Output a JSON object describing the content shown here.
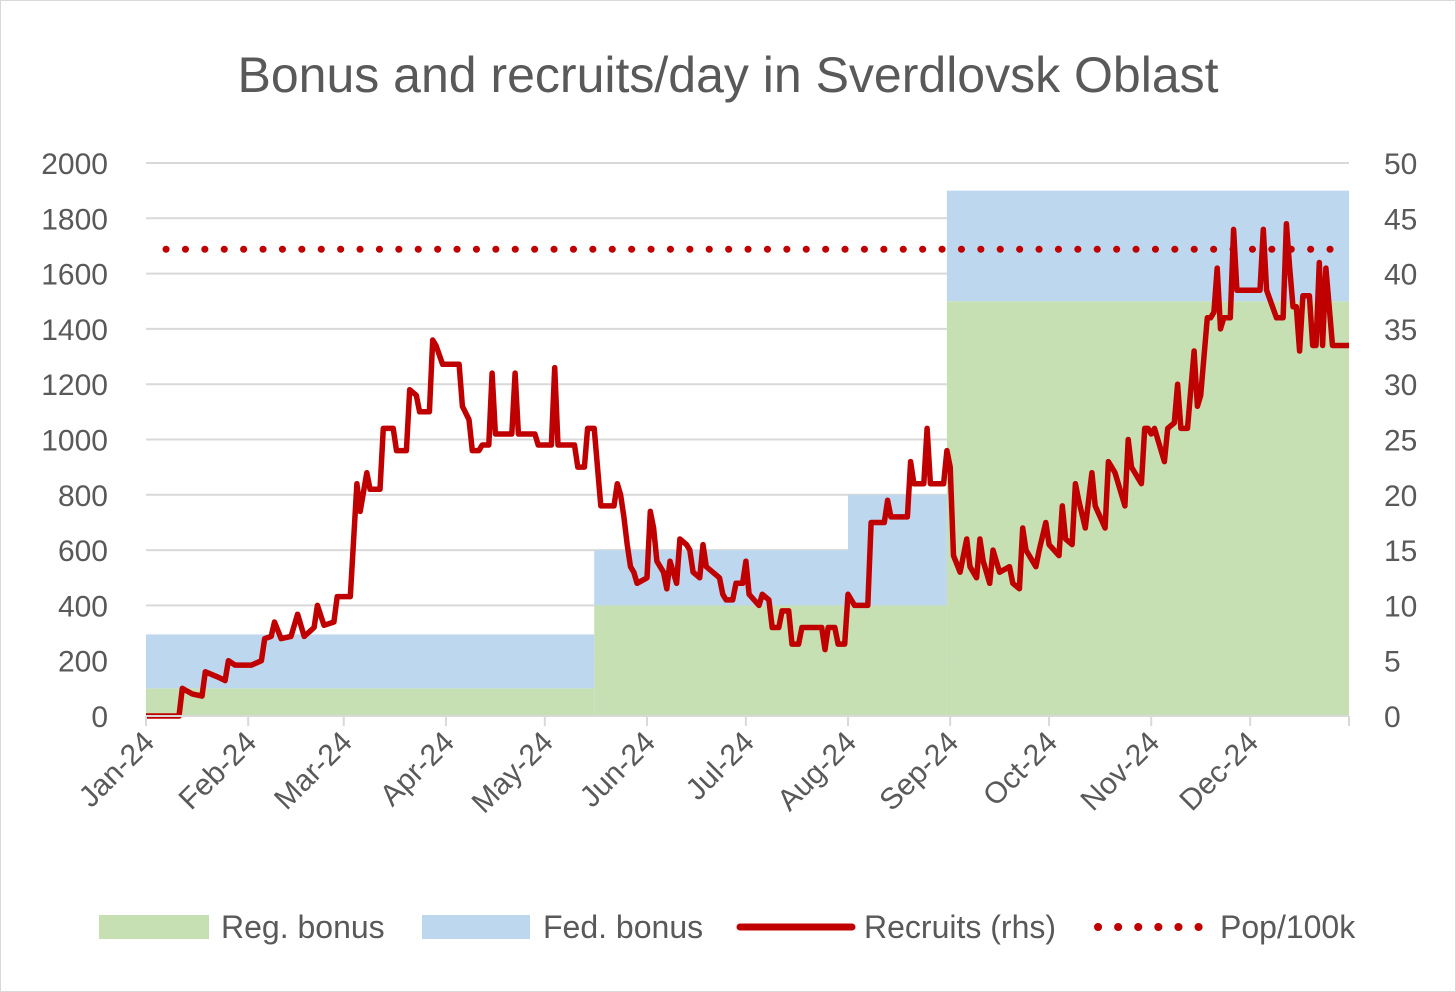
{
  "chart_data": {
    "type": "area",
    "title": "Bonus and recruits/day in Sverdlovsk Oblast",
    "x_ticks": [
      "Jan-24",
      "Feb-24",
      "Mar-24",
      "Apr-24",
      "May-24",
      "Jun-24",
      "Jul-24",
      "Aug-24",
      "Sep-24",
      "Oct-24",
      "Nov-24",
      "Dec-24"
    ],
    "y_left": {
      "min": 0,
      "max": 2000,
      "step": 200,
      "ticks": [
        "0",
        "200",
        "400",
        "600",
        "800",
        "1000",
        "1200",
        "1400",
        "1600",
        "1800",
        "2000"
      ]
    },
    "y_right": {
      "min": 0,
      "max": 50,
      "step": 5,
      "ticks": [
        "0",
        "5",
        "10",
        "15",
        "20",
        "25",
        "30",
        "35",
        "40",
        "45",
        "50"
      ]
    },
    "grid": true,
    "legend_position": "bottom",
    "colors": {
      "reg_bonus": "#c6e0b4",
      "fed_bonus": "#bdd7ee",
      "recruits": "#c00000",
      "pop": "#c00000",
      "grid": "#d9d9d9",
      "text": "#595959"
    },
    "series": [
      {
        "name": "Reg. bonus",
        "kind": "stacked-area",
        "axis": "left",
        "steps": [
          {
            "from": "2024-01-01",
            "to": "2024-05-16",
            "value": 100
          },
          {
            "from": "2024-05-16",
            "to": "2024-08-31",
            "value": 400
          },
          {
            "from": "2024-08-31",
            "to": "2024-12-31",
            "value": 1500
          }
        ]
      },
      {
        "name": "Fed. bonus",
        "kind": "stacked-area",
        "axis": "left",
        "steps": [
          {
            "from": "2024-01-01",
            "to": "2024-05-16",
            "value": 195
          },
          {
            "from": "2024-05-16",
            "to": "2024-08-01",
            "value": 200
          },
          {
            "from": "2024-08-01",
            "to": "2024-08-31",
            "value": 400
          },
          {
            "from": "2024-08-31",
            "to": "2024-12-31",
            "value": 400
          }
        ]
      },
      {
        "name": "Recruits (rhs)",
        "kind": "line",
        "axis": "right",
        "points": [
          [
            "2024-01-01",
            0
          ],
          [
            "2024-01-11",
            0
          ],
          [
            "2024-01-12",
            2.5
          ],
          [
            "2024-01-15",
            2
          ],
          [
            "2024-01-18",
            1.8
          ],
          [
            "2024-01-19",
            4
          ],
          [
            "2024-01-23",
            3.5
          ],
          [
            "2024-01-25",
            3.2
          ],
          [
            "2024-01-26",
            5
          ],
          [
            "2024-01-28",
            4.6
          ],
          [
            "2024-02-02",
            4.6
          ],
          [
            "2024-02-05",
            5
          ],
          [
            "2024-02-06",
            7
          ],
          [
            "2024-02-08",
            7.2
          ],
          [
            "2024-02-09",
            8.5
          ],
          [
            "2024-02-11",
            7
          ],
          [
            "2024-02-14",
            7.2
          ],
          [
            "2024-02-16",
            9.2
          ],
          [
            "2024-02-18",
            7.2
          ],
          [
            "2024-02-21",
            8
          ],
          [
            "2024-02-22",
            10
          ],
          [
            "2024-02-24",
            8.2
          ],
          [
            "2024-02-27",
            8.5
          ],
          [
            "2024-02-28",
            10.8
          ],
          [
            "2024-03-03",
            10.8
          ],
          [
            "2024-03-05",
            21
          ],
          [
            "2024-03-06",
            18.5
          ],
          [
            "2024-03-08",
            22
          ],
          [
            "2024-03-09",
            20.5
          ],
          [
            "2024-03-12",
            20.5
          ],
          [
            "2024-03-13",
            26
          ],
          [
            "2024-03-16",
            26
          ],
          [
            "2024-03-17",
            24
          ],
          [
            "2024-03-20",
            24
          ],
          [
            "2024-03-21",
            29.5
          ],
          [
            "2024-03-23",
            29
          ],
          [
            "2024-03-24",
            27.5
          ],
          [
            "2024-03-27",
            27.5
          ],
          [
            "2024-03-28",
            34
          ],
          [
            "2024-03-29",
            33.5
          ],
          [
            "2024-03-31",
            31.8
          ],
          [
            "2024-04-05",
            31.8
          ],
          [
            "2024-04-06",
            28
          ],
          [
            "2024-04-08",
            26.8
          ],
          [
            "2024-04-09",
            24
          ],
          [
            "2024-04-11",
            24
          ],
          [
            "2024-04-12",
            24.5
          ],
          [
            "2024-04-14",
            24.5
          ],
          [
            "2024-04-15",
            31
          ],
          [
            "2024-04-16",
            25.5
          ],
          [
            "2024-04-21",
            25.5
          ],
          [
            "2024-04-22",
            31
          ],
          [
            "2024-04-23",
            25.5
          ],
          [
            "2024-04-28",
            25.5
          ],
          [
            "2024-04-29",
            24.5
          ],
          [
            "2024-05-03",
            24.5
          ],
          [
            "2024-05-04",
            31.5
          ],
          [
            "2024-05-05",
            24.5
          ],
          [
            "2024-05-10",
            24.5
          ],
          [
            "2024-05-11",
            22.5
          ],
          [
            "2024-05-13",
            22.5
          ],
          [
            "2024-05-14",
            26
          ],
          [
            "2024-05-16",
            26
          ],
          [
            "2024-05-18",
            19
          ],
          [
            "2024-05-22",
            19
          ],
          [
            "2024-05-23",
            21
          ],
          [
            "2024-05-24",
            20
          ],
          [
            "2024-05-25",
            18
          ],
          [
            "2024-05-26",
            15.5
          ],
          [
            "2024-05-27",
            13.5
          ],
          [
            "2024-05-28",
            13
          ],
          [
            "2024-05-29",
            12
          ],
          [
            "2024-06-01",
            12.5
          ],
          [
            "2024-06-02",
            18.5
          ],
          [
            "2024-06-03",
            17
          ],
          [
            "2024-06-04",
            14
          ],
          [
            "2024-06-06",
            13
          ],
          [
            "2024-06-07",
            11.5
          ],
          [
            "2024-06-08",
            14
          ],
          [
            "2024-06-10",
            12
          ],
          [
            "2024-06-11",
            16
          ],
          [
            "2024-06-13",
            15.5
          ],
          [
            "2024-06-14",
            15
          ],
          [
            "2024-06-15",
            13
          ],
          [
            "2024-06-17",
            12.5
          ],
          [
            "2024-06-18",
            15.5
          ],
          [
            "2024-06-19",
            13.5
          ],
          [
            "2024-06-23",
            12.5
          ],
          [
            "2024-06-24",
            11
          ],
          [
            "2024-06-25",
            10.5
          ],
          [
            "2024-06-27",
            10.5
          ],
          [
            "2024-06-28",
            12
          ],
          [
            "2024-06-30",
            12
          ],
          [
            "2024-07-01",
            14
          ],
          [
            "2024-07-02",
            11
          ],
          [
            "2024-07-05",
            10
          ],
          [
            "2024-07-06",
            11
          ],
          [
            "2024-07-08",
            10.5
          ],
          [
            "2024-07-09",
            8
          ],
          [
            "2024-07-11",
            8
          ],
          [
            "2024-07-12",
            9.5
          ],
          [
            "2024-07-14",
            9.5
          ],
          [
            "2024-07-15",
            6.5
          ],
          [
            "2024-07-17",
            6.5
          ],
          [
            "2024-07-18",
            8
          ],
          [
            "2024-07-21",
            8
          ],
          [
            "2024-07-24",
            8
          ],
          [
            "2024-07-25",
            6
          ],
          [
            "2024-07-26",
            8
          ],
          [
            "2024-07-28",
            8
          ],
          [
            "2024-07-29",
            6.5
          ],
          [
            "2024-07-31",
            6.5
          ],
          [
            "2024-08-01",
            11
          ],
          [
            "2024-08-02",
            10.5
          ],
          [
            "2024-08-03",
            10
          ],
          [
            "2024-08-07",
            10
          ],
          [
            "2024-08-08",
            17.5
          ],
          [
            "2024-08-12",
            17.5
          ],
          [
            "2024-08-13",
            19.5
          ],
          [
            "2024-08-14",
            18
          ],
          [
            "2024-08-19",
            18
          ],
          [
            "2024-08-20",
            23
          ],
          [
            "2024-08-21",
            21
          ],
          [
            "2024-08-24",
            21
          ],
          [
            "2024-08-25",
            26
          ],
          [
            "2024-08-26",
            21
          ],
          [
            "2024-08-30",
            21
          ],
          [
            "2024-08-31",
            24
          ],
          [
            "2024-09-01",
            22.5
          ],
          [
            "2024-09-02",
            14.5
          ],
          [
            "2024-09-04",
            13
          ],
          [
            "2024-09-06",
            16
          ],
          [
            "2024-09-07",
            13.5
          ],
          [
            "2024-09-09",
            12.5
          ],
          [
            "2024-09-10",
            16
          ],
          [
            "2024-09-11",
            14
          ],
          [
            "2024-09-13",
            12
          ],
          [
            "2024-09-14",
            15
          ],
          [
            "2024-09-16",
            13
          ],
          [
            "2024-09-19",
            13.5
          ],
          [
            "2024-09-20",
            12
          ],
          [
            "2024-09-22",
            11.5
          ],
          [
            "2024-09-23",
            17
          ],
          [
            "2024-09-24",
            15
          ],
          [
            "2024-09-27",
            13.5
          ],
          [
            "2024-09-28",
            15
          ],
          [
            "2024-09-30",
            17.5
          ],
          [
            "2024-10-01",
            15.5
          ],
          [
            "2024-10-04",
            14.5
          ],
          [
            "2024-10-05",
            19
          ],
          [
            "2024-10-06",
            16
          ],
          [
            "2024-10-08",
            15.5
          ],
          [
            "2024-10-09",
            21
          ],
          [
            "2024-10-10",
            19.5
          ],
          [
            "2024-10-12",
            17
          ],
          [
            "2024-10-14",
            22
          ],
          [
            "2024-10-15",
            19
          ],
          [
            "2024-10-18",
            17
          ],
          [
            "2024-10-19",
            23
          ],
          [
            "2024-10-21",
            22
          ],
          [
            "2024-10-24",
            19
          ],
          [
            "2024-10-25",
            25
          ],
          [
            "2024-10-26",
            22.5
          ],
          [
            "2024-10-29",
            21
          ],
          [
            "2024-10-30",
            26
          ],
          [
            "2024-10-31",
            26
          ],
          [
            "2024-11-01",
            25.5
          ],
          [
            "2024-11-02",
            26
          ],
          [
            "2024-11-05",
            23
          ],
          [
            "2024-11-06",
            26
          ],
          [
            "2024-11-08",
            26.5
          ],
          [
            "2024-11-09",
            30
          ],
          [
            "2024-11-10",
            26
          ],
          [
            "2024-11-12",
            26
          ],
          [
            "2024-11-14",
            33
          ],
          [
            "2024-11-15",
            28
          ],
          [
            "2024-11-16",
            29
          ],
          [
            "2024-11-18",
            36
          ],
          [
            "2024-11-19",
            36
          ],
          [
            "2024-11-20",
            36.5
          ],
          [
            "2024-11-21",
            40.5
          ],
          [
            "2024-11-22",
            35
          ],
          [
            "2024-11-23",
            36
          ],
          [
            "2024-11-25",
            36
          ],
          [
            "2024-11-26",
            44
          ],
          [
            "2024-11-27",
            38.5
          ],
          [
            "2024-12-04",
            38.5
          ],
          [
            "2024-12-05",
            44
          ],
          [
            "2024-12-06",
            38.5
          ],
          [
            "2024-12-09",
            36
          ],
          [
            "2024-12-11",
            36
          ],
          [
            "2024-12-12",
            44.5
          ],
          [
            "2024-12-13",
            40.5
          ],
          [
            "2024-12-14",
            37
          ],
          [
            "2024-12-15",
            37
          ],
          [
            "2024-12-16",
            33
          ],
          [
            "2024-12-17",
            38
          ],
          [
            "2024-12-19",
            38
          ],
          [
            "2024-12-20",
            33.5
          ],
          [
            "2024-12-21",
            33.5
          ],
          [
            "2024-12-22",
            41
          ],
          [
            "2024-12-23",
            33.5
          ],
          [
            "2024-12-24",
            40.5
          ],
          [
            "2024-12-26",
            33.5
          ],
          [
            "2024-12-31",
            33.5
          ]
        ]
      },
      {
        "name": "Pop/100k",
        "kind": "dotted-line",
        "axis": "right",
        "value": 42.2
      }
    ]
  }
}
